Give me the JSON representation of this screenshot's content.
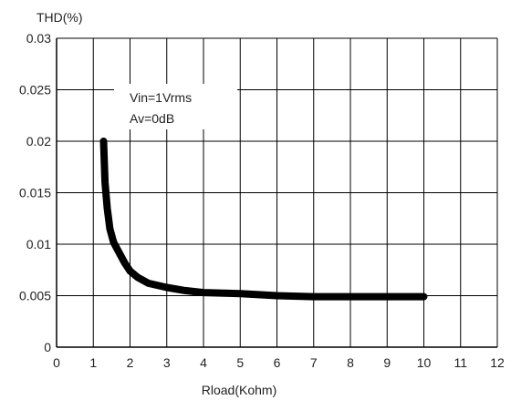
{
  "chart_data": {
    "type": "line",
    "title": "",
    "xlabel": "Rload(Kohm)",
    "ylabel": "THD(%)",
    "xlim": [
      0,
      12
    ],
    "ylim": [
      0,
      0.03
    ],
    "x_ticks": [
      "0",
      "1",
      "2",
      "3",
      "4",
      "5",
      "6",
      "7",
      "8",
      "9",
      "10",
      "11",
      "12"
    ],
    "y_ticks": [
      "0",
      "0.005",
      "0.01",
      "0.015",
      "0.02",
      "0.025",
      "0.03"
    ],
    "grid": true,
    "annotations": [
      "Vin=1Vrms",
      "Av=0dB"
    ],
    "series": [
      {
        "color": "#000000",
        "x": [
          1.28,
          1.32,
          1.38,
          1.45,
          1.55,
          1.7,
          1.85,
          2.0,
          2.2,
          2.5,
          3.0,
          3.5,
          4.0,
          5.0,
          6.0,
          7.0,
          8.0,
          9.0,
          10.0
        ],
        "y": [
          0.02,
          0.016,
          0.0135,
          0.0115,
          0.0102,
          0.0092,
          0.0082,
          0.0074,
          0.0068,
          0.0062,
          0.0058,
          0.0055,
          0.0053,
          0.0052,
          0.005,
          0.0049,
          0.0049,
          0.0049,
          0.0049
        ]
      }
    ]
  }
}
